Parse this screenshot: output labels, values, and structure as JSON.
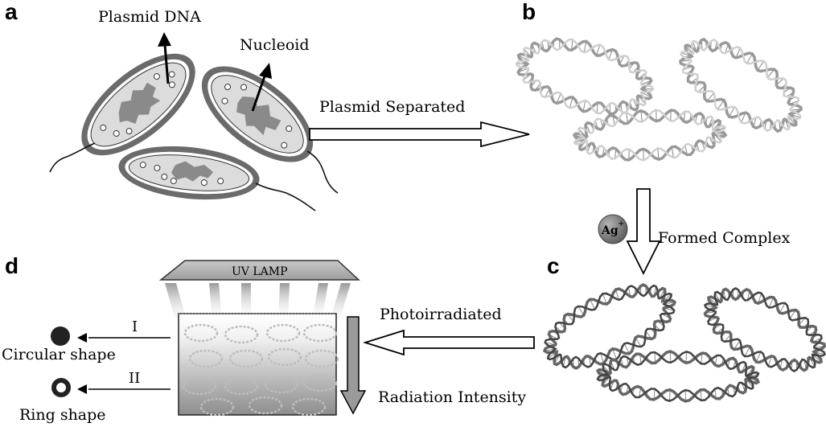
{
  "panels": {
    "a": "a",
    "b": "b",
    "c": "c",
    "d": "d"
  },
  "labels": {
    "plasmid_dna": "Plasmid DNA",
    "nucleoid": "Nucleoid",
    "plasmid_separated": "Plasmid Separated",
    "formed_complex": "Formed Complex",
    "photoirradiated": "Photoirradiated",
    "radiation_intensity": "Radiation Intensity",
    "uv_lamp": "UV LAMP",
    "ag_ion": "Ag",
    "ag_charge": "+",
    "route_1": "I",
    "route_2": "II",
    "circular_shape": "Circular shape",
    "ring_shape": "Ring shape"
  },
  "colors": {
    "cell_wall": "#6b6b6b",
    "cell_body": "#dcdcdc",
    "nucleoid": "#8a8a8a",
    "dna_light": "#d8d8d8",
    "dna_dark": "#7a7a7a",
    "ag_ball": "#7f7f7f",
    "outline": "#111111"
  }
}
